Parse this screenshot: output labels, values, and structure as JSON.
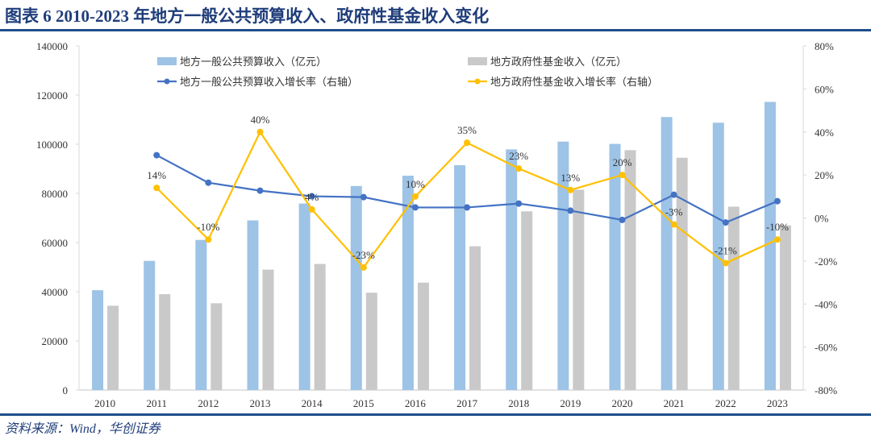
{
  "title": "图表 6   2010-2023 年地方一般公共预算收入、政府性基金收入变化",
  "source": "资料来源：Wind，华创证券",
  "chart_data": {
    "type": "bar+line",
    "categories": [
      "2010",
      "2011",
      "2012",
      "2013",
      "2014",
      "2015",
      "2016",
      "2017",
      "2018",
      "2019",
      "2020",
      "2021",
      "2022",
      "2023"
    ],
    "left_axis": {
      "ylim": [
        0,
        140000
      ],
      "ticks": [
        0,
        20000,
        40000,
        60000,
        80000,
        100000,
        120000,
        140000
      ],
      "tick_labels": [
        "0",
        "20000",
        "40000",
        "60000",
        "80000",
        "100000",
        "120000",
        "140000"
      ]
    },
    "right_axis": {
      "ylim": [
        -0.8,
        0.8
      ],
      "ticks": [
        -0.8,
        -0.6,
        -0.4,
        -0.2,
        0,
        0.2,
        0.4,
        0.6,
        0.8
      ],
      "tick_labels": [
        "-80%",
        "-60%",
        "-40%",
        "-20%",
        "0%",
        "20%",
        "40%",
        "60%",
        "80%"
      ]
    },
    "grid": false,
    "legend_placement": "top",
    "series": [
      {
        "name": "地方一般公共预算收入（亿元）",
        "type": "bar",
        "axis": "left",
        "color": "#9dc3e6",
        "values": [
          40610,
          52547,
          61078,
          69011,
          75877,
          83002,
          87195,
          91469,
          97903,
          101077,
          100143,
          111077,
          108762,
          117218
        ]
      },
      {
        "name": "地方政府性基金收入（亿元）",
        "type": "bar",
        "axis": "left",
        "color": "#c9c9c9",
        "values": [
          34300,
          39000,
          35300,
          49000,
          51300,
          39600,
          43700,
          58500,
          72700,
          81500,
          97600,
          94500,
          74600,
          67000
        ]
      },
      {
        "name": "地方一般公共预算收入增长率（右轴）",
        "type": "line",
        "axis": "right",
        "color": "#4472c4",
        "values": [
          null,
          0.292,
          0.164,
          0.127,
          0.101,
          0.097,
          0.049,
          0.049,
          0.067,
          0.034,
          -0.009,
          0.108,
          -0.021,
          0.078
        ]
      },
      {
        "name": "地方政府性基金收入增长率（右轴）",
        "type": "line",
        "axis": "right",
        "color": "#ffc000",
        "values": [
          null,
          0.14,
          -0.1,
          0.4,
          0.04,
          -0.23,
          0.1,
          0.35,
          0.23,
          0.13,
          0.2,
          -0.03,
          -0.21,
          -0.1
        ],
        "data_labels": [
          null,
          "14%",
          "-10%",
          "40%",
          "4%",
          "-23%",
          "10%",
          "35%",
          "23%",
          "13%",
          "20%",
          "-3%",
          "-21%",
          "-10%"
        ]
      }
    ]
  }
}
